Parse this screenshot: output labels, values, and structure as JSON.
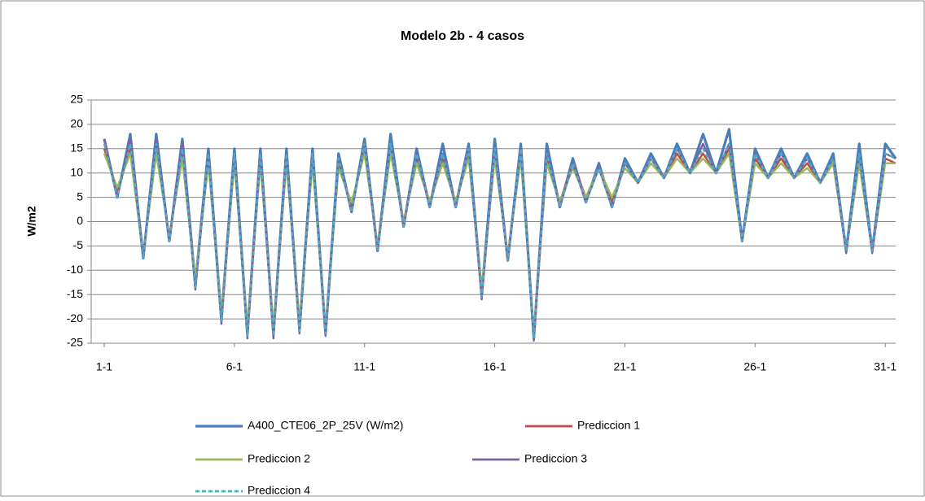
{
  "chart_data": {
    "type": "line",
    "title": "Modelo 2b - 4 casos",
    "y_label": "W/m2",
    "x": [
      1,
      1.5,
      2,
      2.5,
      3,
      3.5,
      4,
      4.5,
      5,
      5.5,
      6,
      6.5,
      7,
      7.5,
      8,
      8.5,
      9,
      9.5,
      10,
      10.5,
      11,
      11.5,
      12,
      12.5,
      13,
      13.5,
      14,
      14.5,
      15,
      15.5,
      16,
      16.5,
      17,
      17.5,
      18,
      18.5,
      19,
      19.5,
      20,
      20.5,
      21,
      21.5,
      22,
      22.5,
      23,
      23.5,
      24,
      24.5,
      25,
      25.5,
      26,
      26.5,
      27,
      27.5,
      28,
      28.5,
      29,
      29.5,
      30,
      30.5,
      31,
      31.4
    ],
    "xlim": [
      0.5,
      31.4
    ],
    "xticks": [
      {
        "value": 1,
        "label": "1-1"
      },
      {
        "value": 6,
        "label": "6-1"
      },
      {
        "value": 11,
        "label": "11-1"
      },
      {
        "value": 16,
        "label": "16-1"
      },
      {
        "value": 21,
        "label": "21-1"
      },
      {
        "value": 26,
        "label": "26-1"
      },
      {
        "value": 31,
        "label": "31-1"
      }
    ],
    "ylim": [
      -25,
      25
    ],
    "yticks": [
      -25,
      -20,
      -15,
      -10,
      -5,
      0,
      5,
      10,
      15,
      20,
      25
    ],
    "grid": true,
    "series": [
      {
        "name": "A400_CTE06_2P_25V (W/m2)",
        "color": "#4a7ebb",
        "style": "solid",
        "values": [
          17,
          5,
          18,
          -7.5,
          18,
          -4,
          17,
          -13,
          15,
          -20,
          15,
          -23,
          15,
          -23,
          15,
          -22,
          15,
          -23,
          14,
          2,
          17,
          -6,
          18,
          -1,
          15,
          3,
          16,
          3,
          16,
          -15,
          17,
          -8,
          16,
          -24,
          16,
          3,
          13,
          4,
          12,
          3,
          13,
          8,
          14,
          9,
          16,
          10,
          18,
          10,
          19,
          -4,
          15,
          9,
          15,
          9,
          14,
          8,
          14,
          -6,
          16,
          -6,
          16,
          13
        ]
      },
      {
        "name": "Prediccion 1",
        "color": "#be4b48",
        "style": "solid",
        "values": [
          15,
          6,
          15,
          -7,
          15,
          -3,
          14,
          -12,
          13,
          -19,
          13,
          -22,
          13,
          -22,
          13,
          -21,
          13,
          -22,
          12,
          3,
          15,
          -5,
          15,
          0,
          13,
          4,
          13,
          4,
          14,
          -14,
          14,
          -7,
          14,
          -23,
          13,
          4,
          12,
          5,
          11,
          4,
          12,
          8,
          13,
          9,
          14,
          10,
          14,
          10,
          15,
          -4,
          13,
          9,
          13,
          9,
          12,
          8,
          12,
          -6,
          13,
          -6,
          13,
          12
        ]
      },
      {
        "name": "Prediccion 2",
        "color": "#98b954",
        "style": "solid",
        "values": [
          14,
          7,
          14,
          -7,
          14,
          -3,
          13,
          -12,
          12,
          -19,
          12,
          -22,
          12,
          -22,
          12,
          -21,
          12,
          -22,
          11,
          4,
          14,
          -5,
          14,
          0,
          12,
          4,
          12,
          4,
          13,
          -14,
          13,
          -7,
          13,
          -23,
          12,
          4,
          11,
          5,
          11,
          5,
          11,
          8,
          12,
          9,
          13,
          10,
          13,
          10,
          14,
          -4,
          12,
          9,
          12,
          9,
          11,
          8,
          12,
          -6,
          12,
          -6,
          12,
          12
        ]
      },
      {
        "name": "Prediccion 3",
        "color": "#7d60a0",
        "style": "solid",
        "values": [
          17,
          5,
          17,
          -7.5,
          17,
          -4,
          16,
          -14,
          14,
          -21,
          14,
          -24,
          14,
          -24,
          14,
          -23,
          14,
          -23.5,
          13,
          2,
          16,
          -6,
          16,
          -1,
          14,
          3,
          14,
          3,
          15,
          -16,
          15,
          -8,
          15,
          -24.5,
          14,
          3,
          12,
          4,
          11,
          3,
          12,
          8,
          13,
          9,
          15,
          10,
          16,
          10,
          16,
          -4,
          14,
          9,
          14,
          9,
          13,
          8,
          13,
          -6.5,
          14,
          -6.5,
          14,
          13
        ]
      },
      {
        "name": "Prediccion 4",
        "color": "#4bacc6",
        "style": "dashed",
        "values": [
          16,
          5,
          16,
          -7.5,
          16,
          -4,
          15,
          -13.5,
          14,
          -20.5,
          14,
          -23.5,
          14,
          -23.5,
          14,
          -22.5,
          14,
          -23,
          13,
          2,
          16,
          -6,
          16,
          -1,
          14,
          3,
          14,
          3,
          15,
          -15.5,
          15,
          -8,
          15,
          -24,
          14,
          3,
          12,
          4,
          11,
          3,
          12,
          8,
          13,
          9,
          15,
          10,
          15,
          10,
          16,
          -4,
          14,
          9,
          14,
          9,
          13,
          8,
          13,
          -6,
          14,
          -6,
          14,
          13
        ]
      }
    ]
  }
}
